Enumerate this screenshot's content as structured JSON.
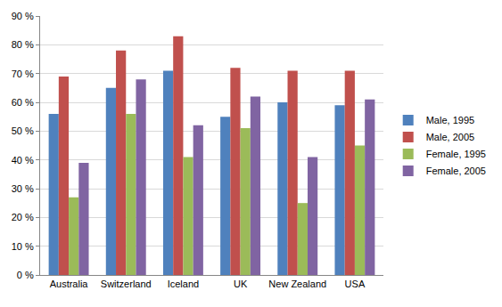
{
  "chart_data": {
    "type": "bar",
    "categories": [
      "Australia",
      "Switzerland",
      "Iceland",
      "UK",
      "New Zealand",
      "USA"
    ],
    "series": [
      {
        "name": "Male, 1995",
        "color": "#4f81bd",
        "values": [
          56,
          65,
          71,
          55,
          60,
          59
        ]
      },
      {
        "name": "Male, 2005",
        "color": "#c0504d",
        "values": [
          69,
          78,
          83,
          72,
          71,
          71
        ]
      },
      {
        "name": "Female, 1995",
        "color": "#9bbb59",
        "values": [
          27,
          56,
          41,
          51,
          25,
          45
        ]
      },
      {
        "name": "Female, 2005",
        "color": "#8064a2",
        "values": [
          39,
          68,
          52,
          62,
          41,
          61
        ]
      }
    ],
    "ylim": [
      0,
      90
    ],
    "yticks": [
      {
        "value": 0,
        "label": "0 %"
      },
      {
        "value": 10,
        "label": "10 %"
      },
      {
        "value": 20,
        "label": "20 %"
      },
      {
        "value": 30,
        "label": "30 %"
      },
      {
        "value": 40,
        "label": "40 %"
      },
      {
        "value": 50,
        "label": "50 %"
      },
      {
        "value": 60,
        "label": "60 %"
      },
      {
        "value": 70,
        "label": "70 %"
      },
      {
        "value": 80,
        "label": "80 %"
      },
      {
        "value": 90,
        "label": "90 %"
      }
    ],
    "grid": true,
    "legend": "right"
  }
}
